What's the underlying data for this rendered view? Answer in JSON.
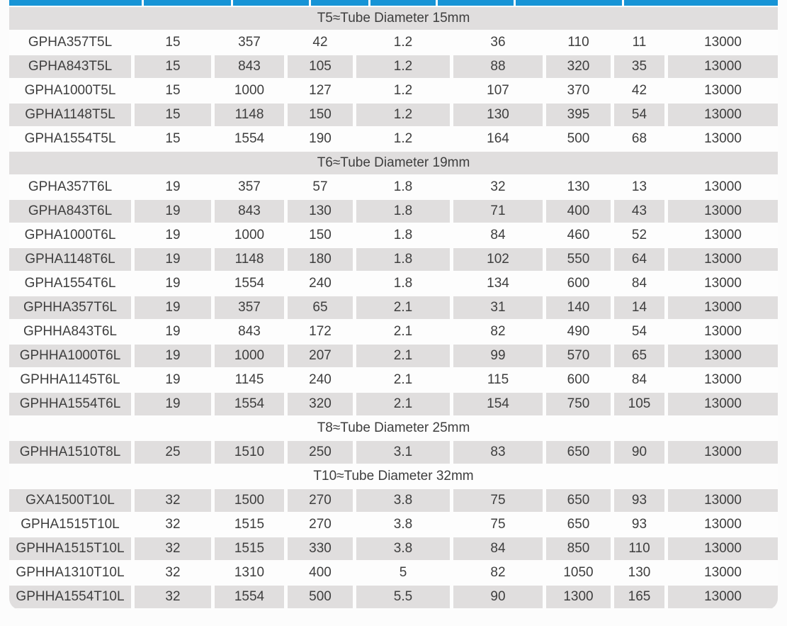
{
  "colors": {
    "header_blue": "#1794d6",
    "row_gray": "#e0dede",
    "row_white": "#fdfdfd",
    "text_color": "#3e3e3e",
    "page_bg": "#fcfcfc"
  },
  "table": {
    "sections": [
      {
        "title": "T5≈Tube Diameter 15mm",
        "rows": [
          [
            "GPHA357T5L",
            "15",
            "357",
            "42",
            "1.2",
            "36",
            "110",
            "11",
            "13000"
          ],
          [
            "GPHA843T5L",
            "15",
            "843",
            "105",
            "1.2",
            "88",
            "320",
            "35",
            "13000"
          ],
          [
            "GPHA1000T5L",
            "15",
            "1000",
            "127",
            "1.2",
            "107",
            "370",
            "42",
            "13000"
          ],
          [
            "GPHA1148T5L",
            "15",
            "1148",
            "150",
            "1.2",
            "130",
            "395",
            "54",
            "13000"
          ],
          [
            "GPHA1554T5L",
            "15",
            "1554",
            "190",
            "1.2",
            "164",
            "500",
            "68",
            "13000"
          ]
        ]
      },
      {
        "title": "T6≈Tube Diameter 19mm",
        "rows": [
          [
            "GPHA357T6L",
            "19",
            "357",
            "57",
            "1.8",
            "32",
            "130",
            "13",
            "13000"
          ],
          [
            "GPHA843T6L",
            "19",
            "843",
            "130",
            "1.8",
            "71",
            "400",
            "43",
            "13000"
          ],
          [
            "GPHA1000T6L",
            "19",
            "1000",
            "150",
            "1.8",
            "84",
            "460",
            "52",
            "13000"
          ],
          [
            "GPHA1148T6L",
            "19",
            "1148",
            "180",
            "1.8",
            "102",
            "550",
            "64",
            "13000"
          ],
          [
            "GPHA1554T6L",
            "19",
            "1554",
            "240",
            "1.8",
            "134",
            "600",
            "84",
            "13000"
          ],
          [
            "GPHHA357T6L",
            "19",
            "357",
            "65",
            "2.1",
            "31",
            "140",
            "14",
            "13000"
          ],
          [
            "GPHHA843T6L",
            "19",
            "843",
            "172",
            "2.1",
            "82",
            "490",
            "54",
            "13000"
          ],
          [
            "GPHHA1000T6L",
            "19",
            "1000",
            "207",
            "2.1",
            "99",
            "570",
            "65",
            "13000"
          ],
          [
            "GPHHA1145T6L",
            "19",
            "1145",
            "240",
            "2.1",
            "115",
            "600",
            "84",
            "13000"
          ],
          [
            "GPHHA1554T6L",
            "19",
            "1554",
            "320",
            "2.1",
            "154",
            "750",
            "105",
            "13000"
          ]
        ]
      },
      {
        "title": "T8≈Tube Diameter 25mm",
        "rows": [
          [
            "GPHHA1510T8L",
            "25",
            "1510",
            "250",
            "3.1",
            "83",
            "650",
            "90",
            "13000"
          ]
        ]
      },
      {
        "title": "T10≈Tube Diameter 32mm",
        "rows": [
          [
            "GXA1500T10L",
            "32",
            "1500",
            "270",
            "3.8",
            "75",
            "650",
            "93",
            "13000"
          ],
          [
            "GPHA1515T10L",
            "32",
            "1515",
            "270",
            "3.8",
            "75",
            "650",
            "93",
            "13000"
          ],
          [
            "GPHHA1515T10L",
            "32",
            "1515",
            "330",
            "3.8",
            "84",
            "850",
            "110",
            "13000"
          ],
          [
            "GPHHA1310T10L",
            "32",
            "1310",
            "400",
            "5",
            "82",
            "1050",
            "130",
            "13000"
          ],
          [
            "GPHHA1554T10L",
            "32",
            "1554",
            "500",
            "5.5",
            "90",
            "1300",
            "165",
            "13000"
          ]
        ]
      }
    ]
  }
}
